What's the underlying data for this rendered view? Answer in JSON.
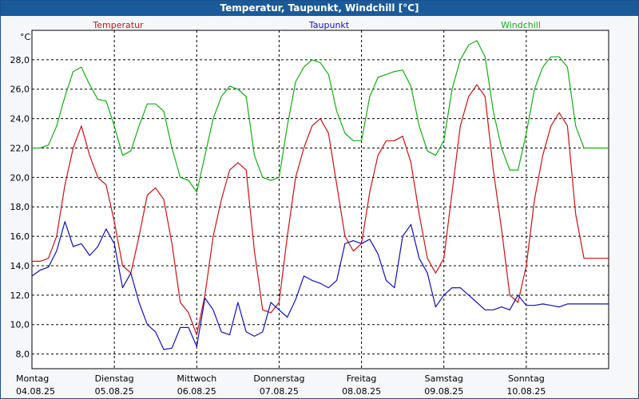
{
  "chart_data": {
    "type": "line",
    "title": "Temperatur, Taupunkt, Windchill [°C]",
    "ylabel": "°C",
    "ylim": [
      7.0,
      30.0
    ],
    "yticks": [
      "8,0",
      "10,0",
      "12,0",
      "14,0",
      "16,0",
      "18,0",
      "20,0",
      "22,0",
      "24,0",
      "26,0",
      "28,0"
    ],
    "ytick_values": [
      8,
      10,
      12,
      14,
      16,
      18,
      20,
      22,
      24,
      26,
      28
    ],
    "xlim": [
      0,
      7
    ],
    "x_categories": [
      {
        "day": "Montag",
        "date": "04.08.25"
      },
      {
        "day": "Dienstag",
        "date": "05.08.25"
      },
      {
        "day": "Mittwoch",
        "date": "06.08.25"
      },
      {
        "day": "Donnerstag",
        "date": "07.08.25"
      },
      {
        "day": "Freitag",
        "date": "08.08.25"
      },
      {
        "day": "Samstag",
        "date": "09.08.25"
      },
      {
        "day": "Sonntag",
        "date": "10.08.25"
      }
    ],
    "grid": true,
    "series": [
      {
        "name": "Temperatur",
        "color": "#d01010",
        "x": [
          0.0,
          0.1,
          0.2,
          0.3,
          0.4,
          0.5,
          0.6,
          0.7,
          0.8,
          0.9,
          1.0,
          1.1,
          1.2,
          1.3,
          1.4,
          1.5,
          1.6,
          1.7,
          1.8,
          1.9,
          2.0,
          2.1,
          2.2,
          2.3,
          2.4,
          2.5,
          2.6,
          2.7,
          2.8,
          2.9,
          3.0,
          3.1,
          3.2,
          3.3,
          3.4,
          3.5,
          3.6,
          3.7,
          3.8,
          3.9,
          4.0,
          4.1,
          4.2,
          4.3,
          4.4,
          4.5,
          4.6,
          4.7,
          4.8,
          4.9,
          5.0,
          5.1,
          5.2,
          5.3,
          5.4,
          5.5,
          5.6,
          5.7,
          5.8,
          5.9,
          6.0,
          6.1,
          6.2,
          6.3,
          6.4,
          6.5,
          6.6,
          6.7,
          6.8,
          6.9,
          7.0
        ],
        "y": [
          14.3,
          14.3,
          14.5,
          16.0,
          19.5,
          22.0,
          23.5,
          21.5,
          20.0,
          19.5,
          17.0,
          14.0,
          13.5,
          16.0,
          18.8,
          19.3,
          18.5,
          15.5,
          11.5,
          10.8,
          9.3,
          12.0,
          16.0,
          18.5,
          20.5,
          21.0,
          20.5,
          15.0,
          11.0,
          10.8,
          11.5,
          16.0,
          20.0,
          22.0,
          23.5,
          24.0,
          23.0,
          19.5,
          16.0,
          15.0,
          15.5,
          19.0,
          21.5,
          22.5,
          22.5,
          22.8,
          21.0,
          17.5,
          14.5,
          13.5,
          14.5,
          19.0,
          23.5,
          25.5,
          26.3,
          25.5,
          20.5,
          16.5,
          12.0,
          11.5,
          14.0,
          18.5,
          21.5,
          23.5,
          24.4,
          23.5,
          17.5,
          14.5,
          14.5,
          14.5,
          14.5
        ]
      },
      {
        "name": "Taupunkt",
        "color": "#1010c0",
        "x": [
          0.0,
          0.1,
          0.2,
          0.3,
          0.4,
          0.5,
          0.6,
          0.7,
          0.8,
          0.9,
          1.0,
          1.1,
          1.2,
          1.3,
          1.4,
          1.5,
          1.6,
          1.7,
          1.8,
          1.9,
          2.0,
          2.1,
          2.2,
          2.3,
          2.4,
          2.5,
          2.6,
          2.7,
          2.8,
          2.9,
          3.0,
          3.1,
          3.2,
          3.3,
          3.4,
          3.5,
          3.6,
          3.7,
          3.8,
          3.9,
          4.0,
          4.1,
          4.2,
          4.3,
          4.4,
          4.5,
          4.6,
          4.7,
          4.8,
          4.9,
          5.0,
          5.1,
          5.2,
          5.3,
          5.4,
          5.5,
          5.6,
          5.7,
          5.8,
          5.9,
          6.0,
          6.1,
          6.2,
          6.3,
          6.4,
          6.5,
          6.6,
          6.7,
          6.8,
          6.9,
          7.0
        ],
        "y": [
          13.3,
          13.7,
          13.9,
          15.0,
          17.0,
          15.3,
          15.5,
          14.7,
          15.3,
          16.5,
          15.5,
          12.5,
          13.5,
          11.5,
          10.0,
          9.5,
          8.3,
          8.4,
          9.8,
          9.8,
          8.5,
          11.8,
          11.0,
          9.5,
          9.3,
          11.5,
          9.5,
          9.2,
          9.5,
          11.5,
          11.0,
          10.5,
          11.7,
          13.3,
          13.0,
          12.8,
          12.5,
          13.0,
          15.5,
          15.7,
          15.5,
          15.8,
          14.8,
          13.0,
          12.5,
          16.0,
          16.8,
          14.5,
          13.5,
          11.2,
          12.0,
          12.5,
          12.5,
          12.0,
          11.5,
          11.0,
          11.0,
          11.2,
          11.0,
          12.0,
          11.3,
          11.3,
          11.4,
          11.3,
          11.2,
          11.4,
          11.4,
          11.4,
          11.4,
          11.4,
          11.4
        ]
      },
      {
        "name": "Windchill",
        "color": "#10b010",
        "x": [
          0.0,
          0.1,
          0.2,
          0.3,
          0.4,
          0.5,
          0.6,
          0.7,
          0.8,
          0.9,
          1.0,
          1.1,
          1.2,
          1.3,
          1.4,
          1.5,
          1.6,
          1.7,
          1.8,
          1.9,
          2.0,
          2.1,
          2.2,
          2.3,
          2.4,
          2.5,
          2.6,
          2.7,
          2.8,
          2.9,
          3.0,
          3.1,
          3.2,
          3.3,
          3.4,
          3.5,
          3.6,
          3.7,
          3.8,
          3.9,
          4.0,
          4.1,
          4.2,
          4.3,
          4.4,
          4.5,
          4.6,
          4.7,
          4.8,
          4.9,
          5.0,
          5.1,
          5.2,
          5.3,
          5.4,
          5.5,
          5.6,
          5.7,
          5.8,
          5.9,
          6.0,
          6.1,
          6.2,
          6.3,
          6.4,
          6.5,
          6.6,
          6.7,
          6.8,
          6.9,
          7.0
        ],
        "y": [
          22.0,
          22.0,
          22.2,
          23.5,
          25.5,
          27.2,
          27.5,
          26.3,
          25.3,
          25.2,
          23.5,
          21.5,
          21.8,
          23.5,
          25.0,
          25.0,
          24.5,
          22.0,
          20.0,
          19.8,
          19.0,
          21.5,
          24.0,
          25.5,
          26.2,
          26.0,
          25.5,
          21.5,
          20.0,
          19.8,
          20.0,
          23.5,
          26.5,
          27.5,
          28.0,
          27.8,
          27.0,
          24.5,
          23.0,
          22.5,
          22.5,
          25.5,
          26.8,
          27.0,
          27.2,
          27.3,
          26.2,
          23.5,
          21.8,
          21.5,
          22.5,
          26.0,
          28.0,
          29.0,
          29.3,
          28.2,
          24.5,
          22.0,
          20.5,
          20.5,
          23.0,
          26.0,
          27.5,
          28.2,
          28.2,
          27.5,
          23.5,
          22.0,
          22.0,
          22.0,
          22.0
        ]
      }
    ],
    "legend": [
      "Temperatur",
      "Taupunkt",
      "Windchill"
    ],
    "legend_position": "top"
  }
}
